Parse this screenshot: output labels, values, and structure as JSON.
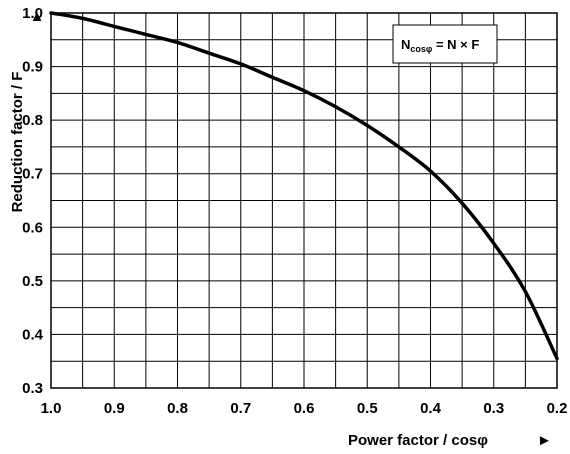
{
  "chart_data": {
    "type": "line",
    "title": "",
    "xlabel": "Power factor / cosφ",
    "ylabel": "Reduction factor / F",
    "xlim": [
      1.0,
      0.2
    ],
    "ylim": [
      0.3,
      1.0
    ],
    "x_reversed": true,
    "grid": true,
    "xticks": [
      "1.0",
      "0.9",
      "0.8",
      "0.7",
      "0.6",
      "0.5",
      "0.4",
      "0.3",
      "0.2"
    ],
    "yticks": [
      "1.0",
      "0.9",
      "0.8",
      "0.7",
      "0.6",
      "0.5",
      "0.4",
      "0.3"
    ],
    "xtick_values": [
      1.0,
      0.9,
      0.8,
      0.7,
      0.6,
      0.5,
      0.4,
      0.3,
      0.2
    ],
    "ytick_values": [
      1.0,
      0.9,
      0.8,
      0.7,
      0.6,
      0.5,
      0.4,
      0.3
    ],
    "minor_x_step": 0.05,
    "minor_y_step": 0.05,
    "x_arrow": "►",
    "y_arrow": "▲",
    "legend_placement": "top-right",
    "annotation": {
      "n": "N",
      "sub": "cosφ",
      "equation": " = N × F"
    },
    "series": [
      {
        "x": [
          1.0,
          0.95,
          0.9,
          0.85,
          0.8,
          0.75,
          0.7,
          0.65,
          0.6,
          0.55,
          0.5,
          0.45,
          0.4,
          0.35,
          0.3,
          0.25,
          0.2
        ],
        "y": [
          1.0,
          0.99,
          0.975,
          0.96,
          0.945,
          0.925,
          0.905,
          0.88,
          0.855,
          0.825,
          0.79,
          0.75,
          0.705,
          0.645,
          0.57,
          0.48,
          0.355
        ],
        "color": "#000000"
      }
    ]
  }
}
